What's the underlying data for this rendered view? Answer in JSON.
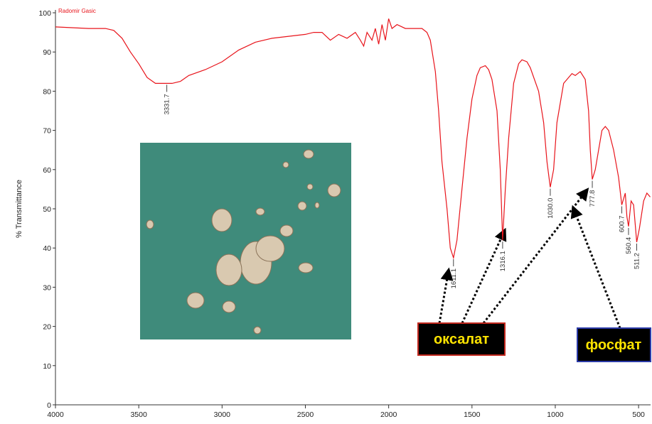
{
  "chart_data": {
    "type": "line",
    "title": "Radomir Gasic",
    "y_label": "% Transmittance",
    "color": "#e8141b",
    "xlim": [
      4000,
      428
    ],
    "xticks": [
      4000,
      3500,
      3000,
      2500,
      2000,
      1500,
      1000,
      500
    ],
    "ylim": [
      0,
      100
    ],
    "yticks": [
      0,
      10,
      20,
      30,
      40,
      50,
      60,
      70,
      80,
      90,
      100
    ],
    "x": [
      4000,
      3800,
      3700,
      3650,
      3600,
      3550,
      3500,
      3450,
      3400,
      3350,
      3331.7,
      3300,
      3250,
      3200,
      3100,
      3000,
      2900,
      2800,
      2700,
      2600,
      2500,
      2450,
      2400,
      2350,
      2300,
      2250,
      2200,
      2170,
      2150,
      2130,
      2100,
      2080,
      2060,
      2040,
      2020,
      2000,
      1980,
      1950,
      1900,
      1850,
      1800,
      1770,
      1750,
      1720,
      1700,
      1680,
      1650,
      1630,
      1611.1,
      1590,
      1560,
      1530,
      1500,
      1470,
      1450,
      1420,
      1400,
      1380,
      1350,
      1330,
      1316.1,
      1300,
      1280,
      1250,
      1220,
      1200,
      1170,
      1150,
      1100,
      1070,
      1050,
      1030,
      1010,
      990,
      950,
      900,
      880,
      850,
      820,
      800,
      790,
      777.8,
      760,
      740,
      720,
      700,
      680,
      650,
      620,
      600.7,
      580,
      570,
      560.4,
      545,
      530,
      511.2,
      495,
      470,
      450,
      430
    ],
    "values": [
      96.4,
      96,
      96,
      95.5,
      93.5,
      90,
      87,
      83.5,
      82,
      82,
      82,
      82,
      82.5,
      84,
      85.5,
      87.5,
      90.5,
      92.5,
      93.5,
      94,
      94.5,
      95,
      95,
      93,
      94.5,
      93.5,
      95,
      93,
      91.5,
      95,
      93,
      96,
      92,
      97,
      93,
      98.5,
      96,
      97,
      96,
      96,
      96,
      95,
      93,
      85,
      75,
      62,
      50,
      40,
      37.5,
      42,
      55,
      68,
      78,
      84,
      86,
      86.5,
      85.5,
      83,
      75,
      60,
      42,
      55,
      68,
      82,
      87,
      88,
      87.5,
      86,
      80,
      72,
      62,
      55.5,
      60,
      72,
      82,
      84.5,
      84,
      85,
      83,
      75,
      65,
      57.5,
      60,
      65,
      70,
      71,
      70,
      65,
      58,
      51,
      54,
      48,
      45.5,
      52,
      51,
      41.5,
      45,
      52,
      54,
      53
    ],
    "peaks": [
      {
        "x": 3331.7,
        "y": 82,
        "label": "3331.7"
      },
      {
        "x": 1611.1,
        "y": 37.5,
        "label": "1611.1"
      },
      {
        "x": 1316.1,
        "y": 42,
        "label": "1316.1"
      },
      {
        "x": 1030,
        "y": 55.5,
        "label": "1030.0"
      },
      {
        "x": 777.8,
        "y": 57.5,
        "label": "777.8"
      },
      {
        "x": 600.7,
        "y": 51,
        "label": "600.7"
      },
      {
        "x": 560.4,
        "y": 45.5,
        "label": "560.4"
      },
      {
        "x": 511.2,
        "y": 41.5,
        "label": "511.2"
      }
    ],
    "annotations": [
      "оксалат",
      "фосфат"
    ]
  }
}
